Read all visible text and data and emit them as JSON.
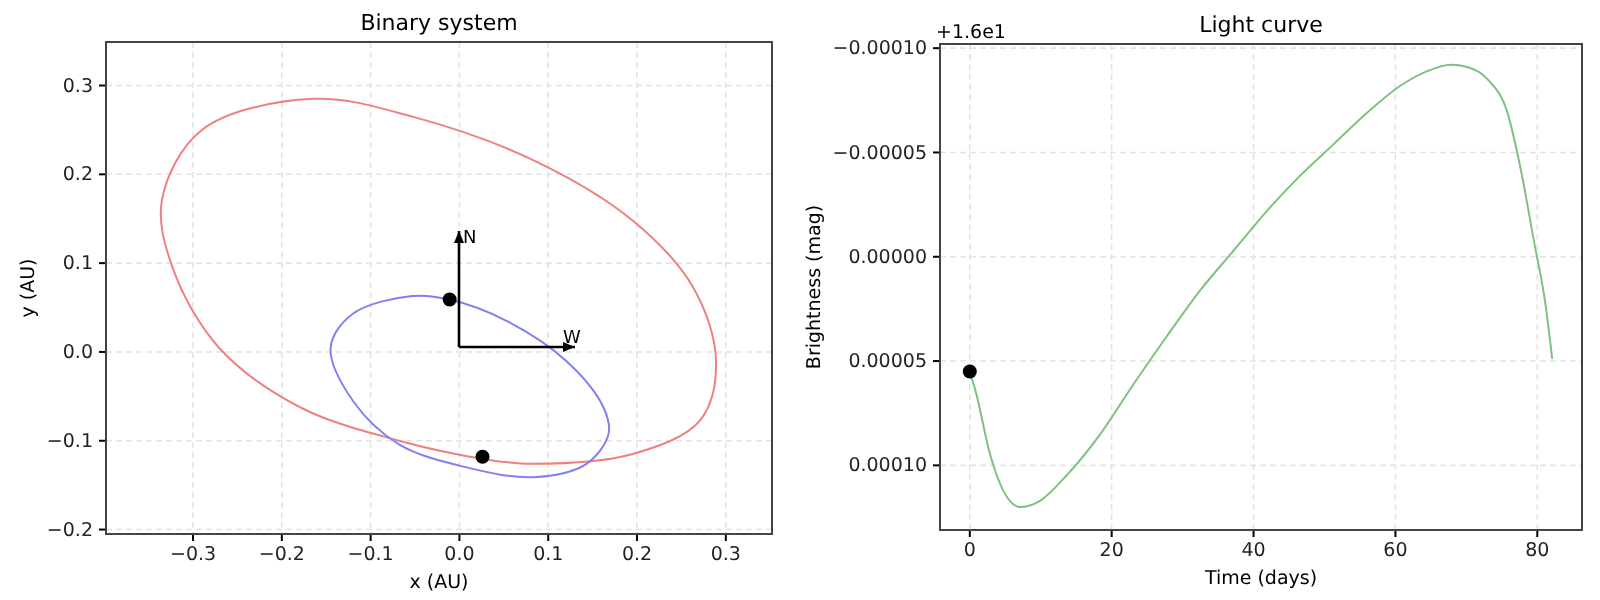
{
  "chart_data": [
    {
      "type": "scatter",
      "title": "Binary system",
      "xlabel": "x (AU)",
      "ylabel": "y (AU)",
      "xlim": [
        -0.398,
        0.352
      ],
      "ylim": [
        -0.205,
        0.349
      ],
      "xticks": [
        {
          "value": -0.3,
          "label": "−0.3"
        },
        {
          "value": -0.2,
          "label": "−0.2"
        },
        {
          "value": -0.1,
          "label": "−0.1"
        },
        {
          "value": 0,
          "label": "0.0"
        },
        {
          "value": 0.1,
          "label": "0.1"
        },
        {
          "value": 0.2,
          "label": "0.2"
        },
        {
          "value": 0.3,
          "label": "0.3"
        }
      ],
      "yticks": [
        {
          "value": -0.2,
          "label": "−0.2"
        },
        {
          "value": -0.1,
          "label": "−0.1"
        },
        {
          "value": 0,
          "label": "0.0"
        },
        {
          "value": 0.1,
          "label": "0.1"
        },
        {
          "value": 0.2,
          "label": "0.2"
        },
        {
          "value": 0.3,
          "label": "0.3"
        }
      ],
      "grid": true,
      "annotations": [
        "N",
        "W"
      ],
      "series": [
        {
          "color": "#000000",
          "marker": "circle",
          "x": [
            -0.011,
            0.026
          ],
          "values": [
            0.059,
            -0.118
          ]
        }
      ]
    },
    {
      "type": "line",
      "title": "Light curve",
      "xlabel": "Time (days)",
      "ylabel": "Brightness (mag)",
      "xlim": [
        -4.2,
        86.3
      ],
      "ylim": [
        0.000131,
        -0.000102
      ],
      "xticks": [
        0,
        20,
        40,
        60,
        80
      ],
      "yticks": [
        {
          "value": -0.0001,
          "label": "−0.00010"
        },
        {
          "value": -5e-05,
          "label": "−0.00005"
        },
        {
          "value": 0,
          "label": "0.00000"
        },
        {
          "value": 5e-05,
          "label": "0.00005"
        },
        {
          "value": 0.0001,
          "label": "0.00010"
        }
      ],
      "grid": true,
      "marker": "none",
      "line_style": "solid",
      "annotations": [
        "+1.6e1"
      ],
      "series": [
        {
          "color": "#80c080",
          "x": [
            0,
            0.94,
            2.8,
            4.7,
            7.1,
            9.9,
            13.6,
            18.4,
            23.1,
            27.8,
            32.5,
            37.2,
            41.9,
            46.6,
            51.3,
            56,
            60.7,
            64.5,
            67.8,
            70.1,
            73,
            75.8,
            77.6,
            79.5,
            81.2,
            82.1
          ],
          "values": [
            5.5e-05,
            6.6e-05,
            9.4e-05,
            0.000112,
            0.00012,
            0.000117,
            0.000105,
            8.5e-05,
            6.1e-05,
            3.8e-05,
            1.6e-05,
            -3e-06,
            -2.2e-05,
            -3.9e-05,
            -5.4e-05,
            -6.9e-05,
            -8.2e-05,
            -8.9e-05,
            -9.2e-05,
            -9.1e-05,
            -8.5e-05,
            -6.9e-05,
            -4.3e-05,
            -8e-06,
            2.4e-05,
            4.9e-05
          ]
        },
        {
          "type": "scatter",
          "color": "#000000",
          "marker": "circle",
          "x": [
            0
          ],
          "values": [
            5.5e-05
          ]
        }
      ]
    }
  ]
}
